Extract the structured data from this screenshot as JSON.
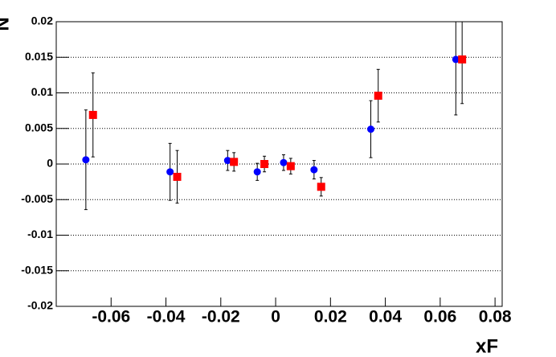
{
  "chart_data": {
    "type": "scatter",
    "x_label": "xF",
    "y_label": "N",
    "xlim": [
      -0.08,
      0.0826
    ],
    "ylim": [
      -0.02,
      0.02
    ],
    "xticks": [
      -0.06,
      -0.04,
      -0.02,
      0,
      0.02,
      0.04,
      0.06,
      0.08
    ],
    "yticks": [
      -0.02,
      -0.015,
      -0.01,
      -0.005,
      0,
      0.005,
      0.01,
      0.015,
      0.02
    ],
    "grid": true,
    "series": [
      {
        "color": "#0000ff",
        "marker": "circle",
        "x": [
          -0.0692,
          -0.0385,
          -0.0175,
          -0.0067,
          0.0029,
          0.014,
          0.0347,
          0.0657
        ],
        "values": [
          0.0006,
          -0.0011,
          0.0005,
          -0.0011,
          0.0002,
          -0.0008,
          0.0049,
          0.0147
        ],
        "errors": [
          0.007,
          0.004,
          0.0014,
          0.0012,
          0.0011,
          0.0013,
          0.004,
          0.0078
        ]
      },
      {
        "color": "#ff0000",
        "marker": "square",
        "x": [
          -0.0666,
          -0.0359,
          -0.0152,
          -0.0041,
          0.0055,
          0.0166,
          0.0374,
          0.068
        ],
        "values": [
          0.0069,
          -0.0018,
          0.0003,
          0.0,
          -0.0003,
          -0.0032,
          0.0096,
          0.0147
        ],
        "errors": [
          0.0059,
          0.0037,
          0.0013,
          0.0011,
          0.0011,
          0.0013,
          0.0037,
          0.0062
        ]
      }
    ]
  }
}
